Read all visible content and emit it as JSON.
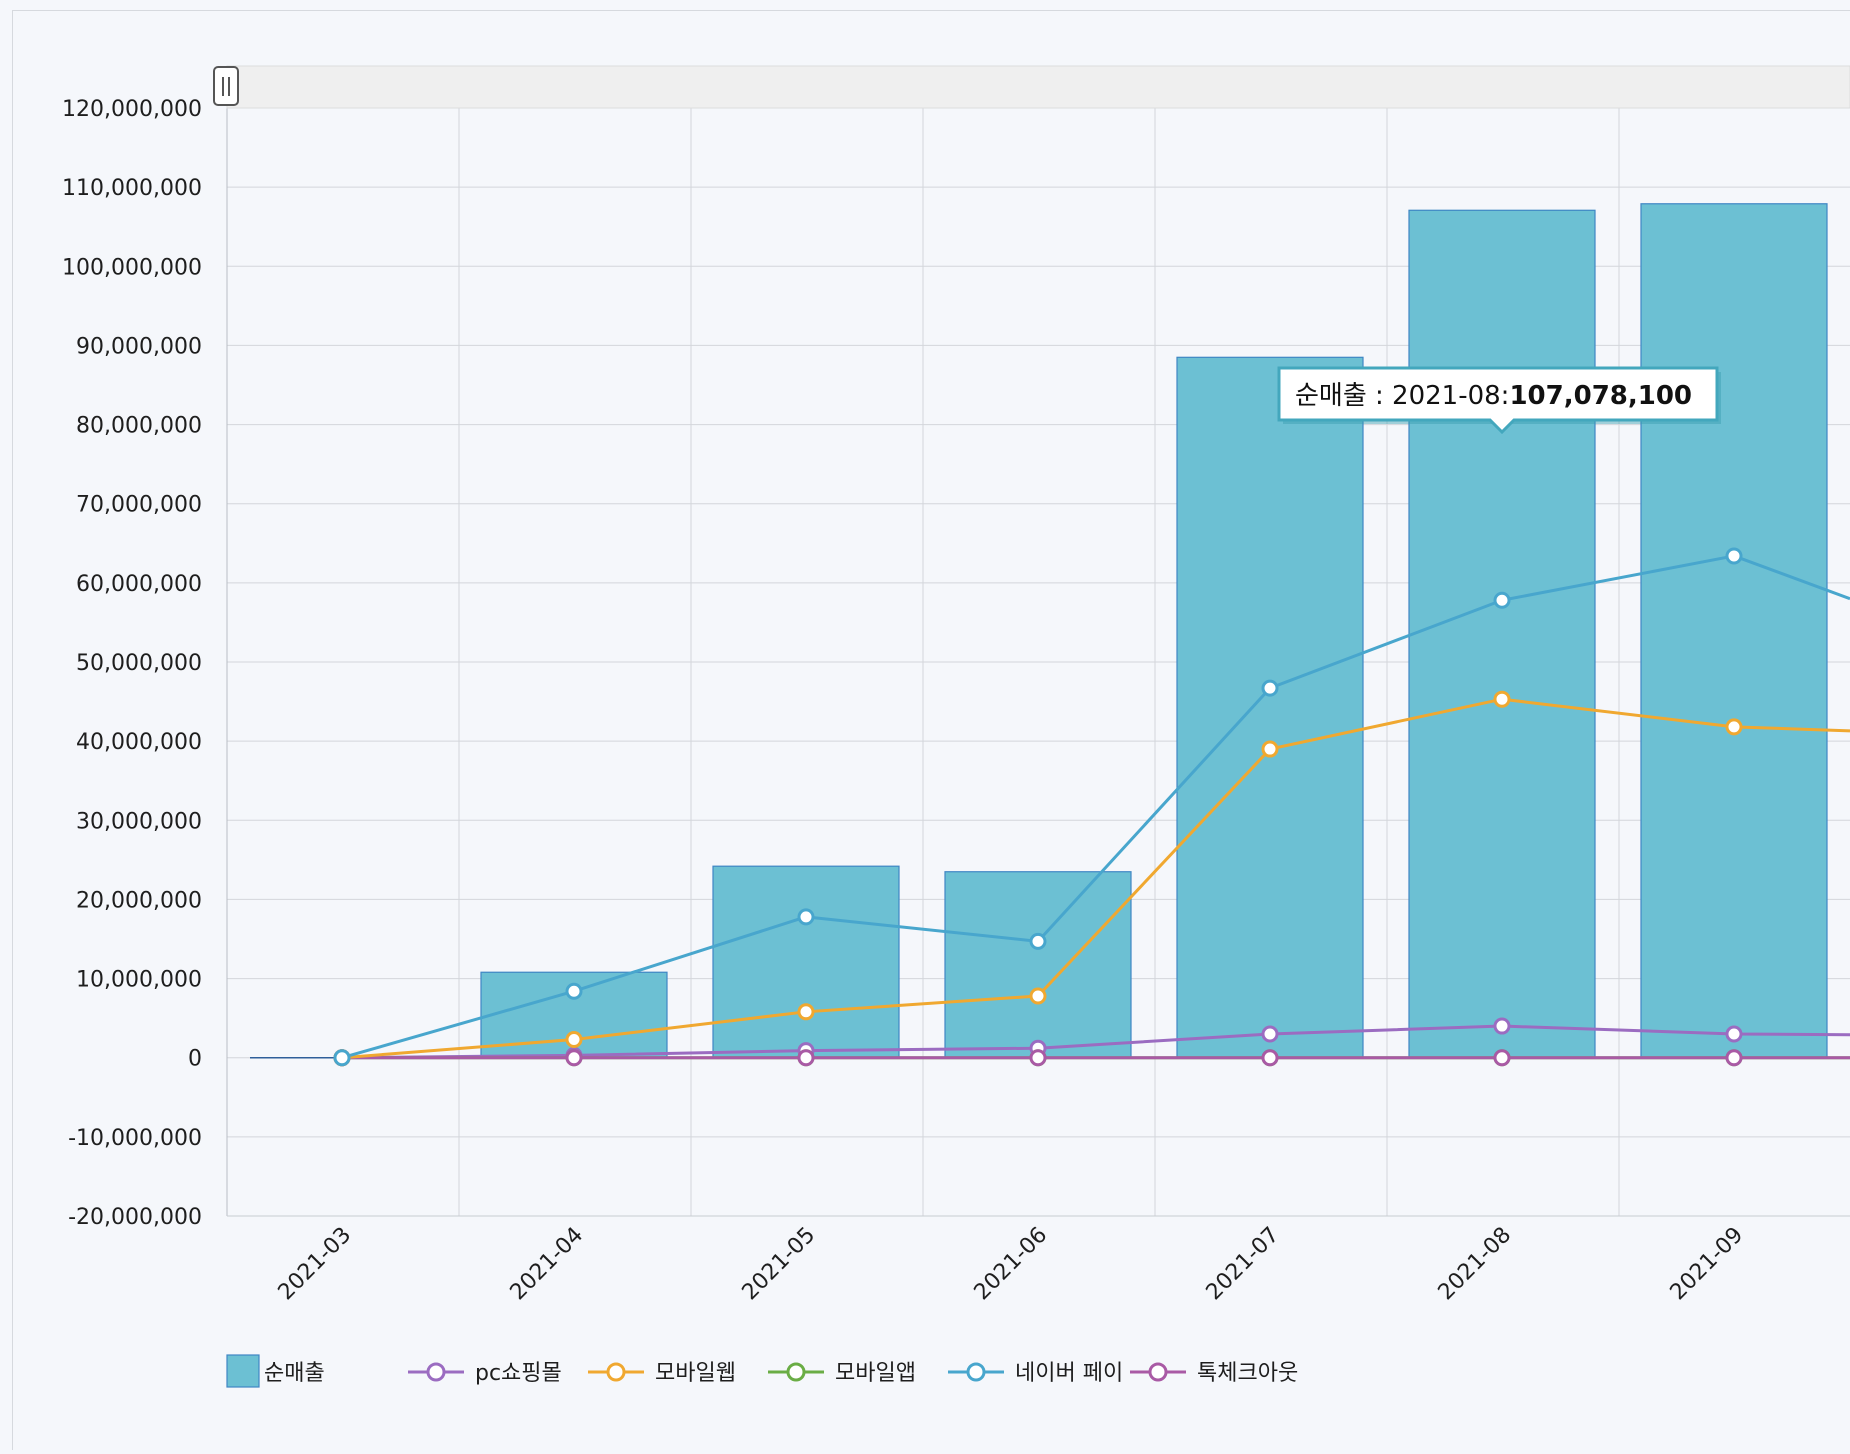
{
  "chart_data": {
    "type": "bar+line",
    "categories": [
      "2021-03",
      "2021-04",
      "2021-05",
      "2021-06",
      "2021-07",
      "2021-08",
      "2021-09"
    ],
    "bar_series": {
      "name": "순매출",
      "color": "#6cc0d3",
      "stroke": "#3f86c4",
      "values": [
        0,
        10800000,
        24200000,
        23500000,
        88500000,
        107078100,
        107900000
      ]
    },
    "line_series": [
      {
        "name": "pc쇼핑몰",
        "color": "#9b6cc1",
        "values": [
          0,
          300000,
          900000,
          1200000,
          3000000,
          4000000,
          3000000
        ],
        "tail_to": 2900000
      },
      {
        "name": "모바일웹",
        "color": "#f0a830",
        "values": [
          0,
          2300000,
          5800000,
          7800000,
          39000000,
          45300000,
          41800000
        ],
        "tail_to": 41300000
      },
      {
        "name": "모바일앱",
        "color": "#6aad45",
        "values": [
          0,
          0,
          0,
          0,
          0,
          0,
          0
        ],
        "tail_to": 0
      },
      {
        "name": "네이버 페이",
        "color": "#48a6cd",
        "values": [
          0,
          8400000,
          17800000,
          14700000,
          46700000,
          57800000,
          63400000
        ],
        "tail_to": 58000000
      },
      {
        "name": "톡체크아웃",
        "color": "#a95aa5",
        "values": [
          0,
          0,
          0,
          0,
          0,
          0,
          0
        ],
        "tail_to": 0
      }
    ],
    "y_axis": {
      "min": -20000000,
      "max": 120000000,
      "step": 10000000,
      "tick_labels": [
        "120,000,000",
        "110,000,000",
        "100,000,000",
        "90,000,000",
        "80,000,000",
        "70,000,000",
        "60,000,000",
        "50,000,000",
        "40,000,000",
        "30,000,000",
        "20,000,000",
        "10,000,000",
        "0",
        "-10,000,000",
        "-20,000,000"
      ]
    },
    "grid": true,
    "legend_position": "bottom-left",
    "tooltip": {
      "series": "순매출",
      "category": "2021-08",
      "prefix": "순매출 : 2021-08:",
      "value_text": "107,078,100"
    }
  }
}
